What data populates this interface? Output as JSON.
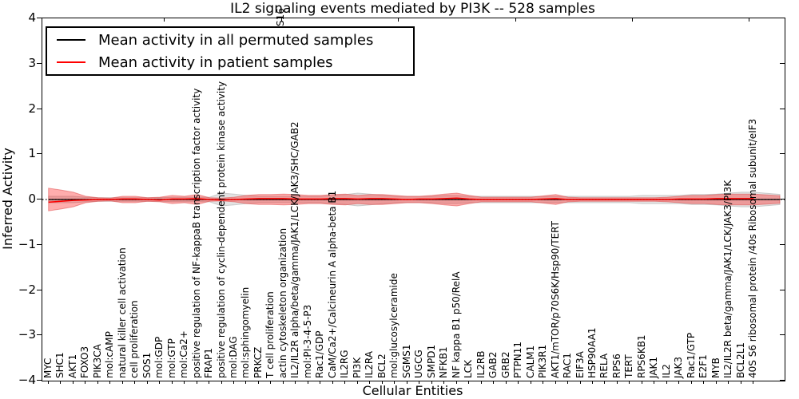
{
  "title": "IL2 signaling events mediated by PI3K -- 528 samples",
  "background_color": "#ffffff",
  "y_axis": {
    "label": "Inferred Activity",
    "ticks": [
      {
        "label": "4",
        "value": 4
      },
      {
        "label": "3",
        "value": 3
      },
      {
        "label": "2",
        "value": 2
      },
      {
        "label": "1",
        "value": 1
      },
      {
        "label": "0",
        "value": 0
      },
      {
        "label": "−1",
        "value": -1
      },
      {
        "label": "−2",
        "value": -2
      },
      {
        "label": "−3",
        "value": -3
      },
      {
        "label": "−4",
        "value": -4
      }
    ]
  },
  "x_axis": {
    "label": "Cellular Entities"
  },
  "top_axis": {
    "tick_positions": [
      205,
      352,
      498,
      645,
      791,
      937
    ],
    "fragment_label": "S16",
    "fragment_x": 352
  },
  "legend": {
    "items": [
      {
        "label": "Mean activity in all permuted samples",
        "color": "#000000"
      },
      {
        "label": "Mean activity in patient samples",
        "color": "#ff0000"
      }
    ]
  },
  "chart_data": {
    "type": "line",
    "title": "IL2 signaling events mediated by PI3K -- 528 samples",
    "xlabel": "Cellular Entities",
    "ylabel": "Inferred Activity",
    "ylim": [
      -4,
      4
    ],
    "grid": false,
    "legend_position": "upper left",
    "zero_line": "dotted",
    "categories": [
      "MYC",
      "SHC1",
      "AKT1",
      "FOXO3",
      "PIK3CA",
      "mol:cAMP",
      "natural killer cell activation",
      "cell proliferation",
      "SOS1",
      "mol:GDP",
      "mol:GTP",
      "mol:Ca2+",
      "positive regulation of NF-kappaB transcription factor activity",
      "FRAP1",
      "positive regulation of cyclin-dependent protein kinase activity",
      "mol:DAG",
      "mol:sphingomyelin",
      "PRKCZ",
      "T cell proliferation",
      "actin cytoskeleton organization",
      "IL2/IL2R alpha/beta/gamma/JAK1/LCK/JAK3/SHC/GAB2",
      "mol:PI-3-4-5-P3",
      "Rac1/GDP",
      "CaM/Ca2+/Calcineurin A alpha-beta B1",
      "IL2RG",
      "PI3K",
      "IL2RA",
      "BCL2",
      "mol:glucosylceramide",
      "SGMS1",
      "UGCG",
      "SMPD1",
      "NFKB1",
      "NF kappa B1 p50/RelA",
      "LCK",
      "IL2RB",
      "GAB2",
      "GRB2",
      "PTPN11",
      "CALM1",
      "PIK3R1",
      "AKT1/mTOR/p70S6K/Hsp90/TERT",
      "RAC1",
      "EIF3A",
      "HSP90AA1",
      "RELA",
      "RPS6",
      "TERT",
      "RPS6KB1",
      "JAK1",
      "IL2",
      "JAK3",
      "Rac1/GTP",
      "E2F1",
      "MYB",
      "IL2/IL2R beta/gamma/JAK1/LCK/JAK3/PI3K",
      "BCL2L1",
      "40S S6 ribosomal protein /40s Ribosomal subunit/eIF3"
    ],
    "series": [
      {
        "name": "Mean activity in all permuted samples",
        "color": "#000000",
        "values": [
          0,
          0,
          0,
          0,
          0,
          0,
          0,
          0,
          0,
          0,
          0,
          0,
          0,
          0,
          0,
          0,
          0,
          0,
          0,
          0,
          0,
          0,
          0,
          0,
          0,
          0,
          0,
          0,
          0,
          0,
          0,
          0,
          0,
          0,
          0,
          0,
          0,
          0,
          0,
          0,
          0,
          0,
          0,
          0,
          0,
          0,
          0,
          0,
          0,
          0,
          0,
          0,
          0,
          0,
          0,
          0,
          0,
          0
        ]
      },
      {
        "name": "Mean activity in patient samples",
        "color": "#ff0000",
        "values": [
          -0.06,
          -0.04,
          -0.02,
          -0.01,
          0,
          0,
          0.01,
          0.01,
          0,
          -0.01,
          0.01,
          0.01,
          0.02,
          0,
          -0.01,
          0,
          0.01,
          0.02,
          0.02,
          0.02,
          0.01,
          0.01,
          0.01,
          0.02,
          0.02,
          0.01,
          0.02,
          0.02,
          0.01,
          0,
          0.01,
          0.01,
          0.02,
          0.03,
          0.01,
          0,
          0,
          0,
          0,
          0,
          0.01,
          0.02,
          0,
          0,
          0,
          0,
          0,
          0,
          0,
          0,
          0,
          0.01,
          0.01,
          0.01,
          0.02,
          0.02,
          0.02,
          0.02
        ]
      }
    ],
    "bands": [
      {
        "name": "Permuted samples activity range",
        "color": "#808080",
        "opacity": 0.22,
        "half_widths": [
          0.07,
          0.07,
          0.07,
          0.05,
          0.04,
          0.04,
          0.04,
          0.04,
          0.04,
          0.04,
          0.05,
          0.05,
          0.05,
          0.05,
          0.14,
          0.12,
          0.09,
          0.07,
          0.07,
          0.07,
          0.07,
          0.07,
          0.07,
          0.09,
          0.11,
          0.14,
          0.12,
          0.09,
          0.07,
          0.07,
          0.07,
          0.07,
          0.09,
          0.09,
          0.07,
          0.07,
          0.07,
          0.07,
          0.07,
          0.07,
          0.07,
          0.07,
          0.07,
          0.07,
          0.07,
          0.07,
          0.07,
          0.07,
          0.09,
          0.09,
          0.09,
          0.09,
          0.11,
          0.11,
          0.12,
          0.14,
          0.16,
          0.16
        ]
      },
      {
        "name": "Patient samples activity range",
        "color": "#ff0000",
        "opacity": 0.32,
        "half_widths": [
          0.25,
          0.21,
          0.16,
          0.07,
          0.04,
          0.03,
          0.07,
          0.07,
          0.04,
          0.05,
          0.09,
          0.07,
          0.11,
          0.04,
          0.03,
          0.05,
          0.09,
          0.11,
          0.11,
          0.12,
          0.11,
          0.09,
          0.09,
          0.11,
          0.12,
          0.09,
          0.11,
          0.11,
          0.09,
          0.07,
          0.07,
          0.09,
          0.12,
          0.14,
          0.09,
          0.05,
          0.05,
          0.05,
          0.05,
          0.05,
          0.08,
          0.11,
          0.05,
          0.04,
          0.04,
          0.04,
          0.04,
          0.04,
          0.04,
          0.04,
          0.05,
          0.07,
          0.09,
          0.09,
          0.11,
          0.12,
          0.12,
          0.12
        ]
      }
    ]
  }
}
